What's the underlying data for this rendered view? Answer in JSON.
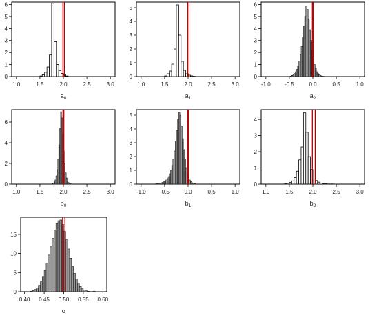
{
  "chart_data": [
    {
      "type": "bar",
      "xlabel": "a",
      "xlabel_sub": "0",
      "xlim": [
        0.9,
        3.1
      ],
      "ylim": [
        0,
        6.2
      ],
      "xticks": [
        "1.0",
        "1.5",
        "2.0",
        "2.5",
        "3.0"
      ],
      "xtick_values": [
        1.0,
        1.5,
        2.0,
        2.5,
        3.0
      ],
      "yticks": [
        "0",
        "1",
        "2",
        "3",
        "4",
        "5",
        "6"
      ],
      "ytick_values": [
        0,
        1,
        2,
        3,
        4,
        5,
        6
      ],
      "bins": {
        "start": 1.5,
        "width": 0.05,
        "values": [
          0.05,
          0.15,
          0.35,
          0.8,
          1.8,
          6.1,
          2.9,
          1.0,
          0.5,
          0.25,
          0.15,
          0.05
        ]
      },
      "vlines": [
        1.99,
        2.02
      ]
    },
    {
      "type": "bar",
      "xlabel": "a",
      "xlabel_sub": "1",
      "xlim": [
        0.9,
        3.1
      ],
      "ylim": [
        0,
        5.4
      ],
      "xticks": [
        "1.0",
        "1.5",
        "2.0",
        "2.5",
        "3.0"
      ],
      "xtick_values": [
        1.0,
        1.5,
        2.0,
        2.5,
        3.0
      ],
      "yticks": [
        "0",
        "1",
        "2",
        "3",
        "4",
        "5"
      ],
      "ytick_values": [
        0,
        1,
        2,
        3,
        4,
        5
      ],
      "bins": {
        "start": 1.5,
        "width": 0.05,
        "values": [
          0.05,
          0.2,
          0.4,
          0.9,
          2.0,
          5.2,
          3.0,
          1.1,
          0.45,
          0.2,
          0.1,
          0.05,
          0.02
        ]
      },
      "vlines": [
        1.99,
        2.02
      ]
    },
    {
      "type": "bar",
      "xlabel": "a",
      "xlabel_sub": "2",
      "xlim": [
        -1.1,
        1.1
      ],
      "ylim": [
        0,
        6.2
      ],
      "xticks": [
        "-1.0",
        "-0.5",
        "0.0",
        "0.5",
        "1.0"
      ],
      "xtick_values": [
        -1.0,
        -0.5,
        0.0,
        0.5,
        1.0
      ],
      "yticks": [
        "0",
        "1",
        "2",
        "3",
        "4",
        "5",
        "6"
      ],
      "ytick_values": [
        0,
        1,
        2,
        3,
        4,
        5,
        6
      ],
      "bins": {
        "start": -0.5,
        "width": 0.025,
        "values": [
          0.02,
          0.05,
          0.1,
          0.15,
          0.25,
          0.4,
          0.6,
          0.9,
          1.3,
          1.8,
          2.5,
          3.3,
          4.2,
          5.0,
          5.9,
          5.6,
          4.8,
          3.9,
          3.0,
          2.2,
          1.5,
          1.0,
          0.7,
          0.4,
          0.25,
          0.15,
          0.1,
          0.05,
          0.03,
          0.02
        ]
      },
      "vlines": [
        -0.01,
        0.01
      ]
    },
    {
      "type": "bar",
      "xlabel": "b",
      "xlabel_sub": "0",
      "xlim": [
        0.9,
        3.1
      ],
      "ylim": [
        0,
        7.2
      ],
      "xticks": [
        "1.0",
        "1.5",
        "2.0",
        "2.5",
        "3.0"
      ],
      "xtick_values": [
        1.0,
        1.5,
        2.0,
        2.5,
        3.0
      ],
      "yticks": [
        "0",
        "2",
        "4",
        "6"
      ],
      "ytick_values": [
        0,
        2,
        4,
        6
      ],
      "bins": {
        "start": 1.76,
        "width": 0.02,
        "values": [
          0.05,
          0.1,
          0.2,
          0.4,
          0.8,
          1.4,
          2.4,
          3.8,
          5.4,
          7.0,
          6.4,
          4.8,
          3.2,
          2.0,
          1.1,
          0.6,
          0.3,
          0.15,
          0.08,
          0.04,
          0.02,
          0.01
        ]
      },
      "vlines": [
        1.99,
        2.01
      ]
    },
    {
      "type": "bar",
      "xlabel": "b",
      "xlabel_sub": "1",
      "xlim": [
        -1.1,
        1.1
      ],
      "ylim": [
        0,
        5.4
      ],
      "xticks": [
        "-1.0",
        "-0.5",
        "0.0",
        "0.5",
        "1.0"
      ],
      "xtick_values": [
        -1.0,
        -0.5,
        0.0,
        0.5,
        1.0
      ],
      "yticks": [
        "0",
        "1",
        "2",
        "3",
        "4",
        "5"
      ],
      "ytick_values": [
        0,
        1,
        2,
        3,
        4,
        5
      ],
      "bins": {
        "start": -0.7,
        "width": 0.025,
        "values": [
          0.02,
          0.03,
          0.05,
          0.06,
          0.08,
          0.1,
          0.13,
          0.17,
          0.22,
          0.3,
          0.4,
          0.55,
          0.75,
          1.0,
          1.35,
          1.8,
          2.4,
          3.1,
          3.9,
          4.7,
          5.2,
          5.0,
          4.2,
          3.3,
          2.5,
          1.8,
          1.2,
          0.8,
          0.5,
          0.3,
          0.18,
          0.1,
          0.06,
          0.03,
          0.02
        ]
      },
      "vlines": [
        -0.01,
        0.01
      ]
    },
    {
      "type": "bar",
      "xlabel": "b",
      "xlabel_sub": "2",
      "xlim": [
        0.9,
        3.1
      ],
      "ylim": [
        0,
        4.6
      ],
      "xticks": [
        "1.0",
        "1.5",
        "2.0",
        "2.5",
        "3.0"
      ],
      "xtick_values": [
        1.0,
        1.5,
        2.0,
        2.5,
        3.0
      ],
      "yticks": [
        "0",
        "1",
        "2",
        "3",
        "4"
      ],
      "ytick_values": [
        0,
        1,
        2,
        3,
        4
      ],
      "bins": {
        "start": 1.4,
        "width": 0.05,
        "values": [
          0.02,
          0.05,
          0.1,
          0.2,
          0.4,
          0.8,
          1.5,
          2.3,
          4.4,
          3.2,
          1.7,
          0.9,
          0.45,
          0.22,
          0.12,
          0.07,
          0.04,
          0.02,
          0.01,
          0.01,
          0.01
        ]
      },
      "vlines": [
        1.99,
        2.05
      ]
    },
    {
      "type": "bar",
      "xlabel": "σ",
      "xlabel_sub": "",
      "xlim": [
        0.39,
        0.61
      ],
      "ylim": [
        0,
        19.5
      ],
      "xticks": [
        "0.40",
        "0.45",
        "0.50",
        "0.55",
        "0.60"
      ],
      "xtick_values": [
        0.4,
        0.45,
        0.5,
        0.55,
        0.6
      ],
      "yticks": [
        "0",
        "5",
        "10",
        "15"
      ],
      "ytick_values": [
        0,
        5,
        10,
        15
      ],
      "bins": {
        "start": 0.415,
        "width": 0.005,
        "values": [
          0.15,
          0.3,
          0.6,
          1.0,
          1.7,
          2.6,
          4.0,
          5.6,
          7.5,
          9.6,
          11.8,
          14.0,
          16.2,
          17.8,
          18.6,
          18.8,
          17.6,
          15.8,
          13.6,
          11.2,
          8.8,
          6.6,
          4.8,
          3.3,
          2.2,
          1.4,
          0.8,
          0.45,
          0.25,
          0.12,
          0.06,
          0.03,
          0.15,
          0.02
        ]
      },
      "vlines": [
        0.497,
        0.503
      ]
    }
  ]
}
